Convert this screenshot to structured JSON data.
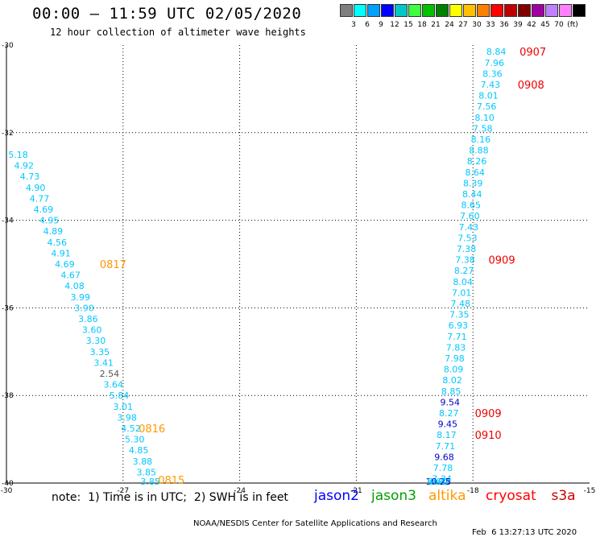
{
  "header": {
    "title": "00:00 – 11:59 UTC 02/05/2020",
    "subtitle": "12 hour collection of altimeter wave heights"
  },
  "colorbar": {
    "colors": [
      "#7f7f7f",
      "#00ffff",
      "#00a0ff",
      "#0000ff",
      "#00c8c8",
      "#40ff40",
      "#00c000",
      "#008000",
      "#ffff00",
      "#ffc000",
      "#ff8000",
      "#ff0000",
      "#c00000",
      "#800000",
      "#a000a0",
      "#c080ff",
      "#ff80ff",
      "#000000"
    ],
    "labels": [
      "3",
      "6",
      "9",
      "12",
      "15",
      "18",
      "21",
      "24",
      "27",
      "30",
      "33",
      "36",
      "39",
      "42",
      "45",
      "70",
      "(ft)"
    ]
  },
  "note": "note:  1) Time is in UTC;  2) SWH is in feet",
  "satellites": [
    {
      "name": "jason2",
      "color": "#0000ff"
    },
    {
      "name": "jason3",
      "color": "#00a000"
    },
    {
      "name": "altika",
      "color": "#ff9900"
    },
    {
      "name": "cryosat",
      "color": "#ff0000"
    },
    {
      "name": "s3a",
      "color": "#cc0000"
    }
  ],
  "footer": {
    "credit": "NOAA/NESDIS Center for Satellite Applications and Research",
    "timestamp": "Feb  6 13:27:13 UTC 2020"
  },
  "chart_data": {
    "type": "scatter",
    "x_ticks": [
      "-30",
      "-27",
      "-24",
      "-21",
      "-18",
      "-15"
    ],
    "y_ticks": [
      "-30",
      "-32",
      "-34",
      "-36",
      "-38",
      "-40"
    ],
    "xlim": [
      -30,
      -15
    ],
    "ylim": [
      -40,
      -30
    ],
    "grid": true,
    "colors": {
      "cyan": "#00c8ff",
      "blue": "#0000cc",
      "gray": "#555555",
      "orange": "#ff9900",
      "red": "#ee0000"
    },
    "left_track": [
      {
        "lon": -29.7,
        "lat": -32.5,
        "value": "5.18",
        "color": "cyan"
      },
      {
        "lon": -29.55,
        "lat": -32.75,
        "value": "4.92",
        "color": "cyan"
      },
      {
        "lon": -29.4,
        "lat": -33.0,
        "value": "4.73",
        "color": "cyan"
      },
      {
        "lon": -29.25,
        "lat": -33.25,
        "value": "4.90",
        "color": "cyan"
      },
      {
        "lon": -29.15,
        "lat": -33.5,
        "value": "4.77",
        "color": "cyan"
      },
      {
        "lon": -29.05,
        "lat": -33.75,
        "value": "4.69",
        "color": "cyan"
      },
      {
        "lon": -28.9,
        "lat": -34.0,
        "value": "4.95",
        "color": "cyan"
      },
      {
        "lon": -28.8,
        "lat": -34.25,
        "value": "4.89",
        "color": "cyan"
      },
      {
        "lon": -28.7,
        "lat": -34.5,
        "value": "4.56",
        "color": "cyan"
      },
      {
        "lon": -28.6,
        "lat": -34.75,
        "value": "4.91",
        "color": "cyan"
      },
      {
        "lon": -28.5,
        "lat": -35.0,
        "value": "4.69",
        "color": "cyan"
      },
      {
        "lon": -28.35,
        "lat": -35.25,
        "value": "4.67",
        "color": "cyan"
      },
      {
        "lon": -28.25,
        "lat": -35.5,
        "value": "4.08",
        "color": "cyan"
      },
      {
        "lon": -28.1,
        "lat": -35.75,
        "value": "3.99",
        "color": "cyan"
      },
      {
        "lon": -28.0,
        "lat": -36.0,
        "value": "3.90",
        "color": "cyan"
      },
      {
        "lon": -27.9,
        "lat": -36.25,
        "value": "3.86",
        "color": "cyan"
      },
      {
        "lon": -27.8,
        "lat": -36.5,
        "value": "3.60",
        "color": "cyan"
      },
      {
        "lon": -27.7,
        "lat": -36.75,
        "value": "3.30",
        "color": "cyan"
      },
      {
        "lon": -27.6,
        "lat": -37.0,
        "value": "3.35",
        "color": "cyan"
      },
      {
        "lon": -27.5,
        "lat": -37.25,
        "value": "3.41",
        "color": "cyan"
      },
      {
        "lon": -27.35,
        "lat": -37.5,
        "value": "2.54",
        "color": "gray"
      },
      {
        "lon": -27.25,
        "lat": -37.75,
        "value": "3.64",
        "color": "cyan"
      },
      {
        "lon": -27.1,
        "lat": -38.0,
        "value": "5.84",
        "color": "cyan"
      },
      {
        "lon": -27.0,
        "lat": -38.25,
        "value": "3.01",
        "color": "cyan"
      },
      {
        "lon": -26.9,
        "lat": -38.5,
        "value": "3.98",
        "color": "cyan"
      },
      {
        "lon": -26.8,
        "lat": -38.75,
        "value": "4.52",
        "color": "cyan"
      },
      {
        "lon": -26.7,
        "lat": -39.0,
        "value": "5.30",
        "color": "cyan"
      },
      {
        "lon": -26.6,
        "lat": -39.25,
        "value": "4.85",
        "color": "cyan"
      },
      {
        "lon": -26.5,
        "lat": -39.5,
        "value": "3.88",
        "color": "cyan"
      },
      {
        "lon": -26.4,
        "lat": -39.75,
        "value": "3.85",
        "color": "cyan"
      },
      {
        "lon": -26.3,
        "lat": -40.0,
        "value": "3.85",
        "color": "cyan"
      }
    ],
    "right_track": [
      {
        "lon": -17.4,
        "lat": -30.15,
        "value": "8.84",
        "color": "cyan"
      },
      {
        "lon": -17.45,
        "lat": -30.4,
        "value": "7.96",
        "color": "cyan"
      },
      {
        "lon": -17.5,
        "lat": -30.65,
        "value": "8.36",
        "color": "cyan"
      },
      {
        "lon": -17.55,
        "lat": -30.9,
        "value": "7.43",
        "color": "cyan"
      },
      {
        "lon": -17.6,
        "lat": -31.15,
        "value": "8.01",
        "color": "cyan"
      },
      {
        "lon": -17.65,
        "lat": -31.4,
        "value": "7.56",
        "color": "cyan"
      },
      {
        "lon": -17.7,
        "lat": -31.65,
        "value": "8.10",
        "color": "cyan"
      },
      {
        "lon": -17.75,
        "lat": -31.9,
        "value": "7.58",
        "color": "cyan"
      },
      {
        "lon": -17.8,
        "lat": -32.15,
        "value": "8.16",
        "color": "cyan"
      },
      {
        "lon": -17.85,
        "lat": -32.4,
        "value": "8.88",
        "color": "cyan"
      },
      {
        "lon": -17.9,
        "lat": -32.65,
        "value": "8.26",
        "color": "cyan"
      },
      {
        "lon": -17.95,
        "lat": -32.9,
        "value": "8.64",
        "color": "cyan"
      },
      {
        "lon": -18.0,
        "lat": -33.15,
        "value": "8.39",
        "color": "cyan"
      },
      {
        "lon": -18.02,
        "lat": -33.4,
        "value": "8.44",
        "color": "cyan"
      },
      {
        "lon": -18.05,
        "lat": -33.65,
        "value": "8.65",
        "color": "cyan"
      },
      {
        "lon": -18.08,
        "lat": -33.9,
        "value": "7.60",
        "color": "cyan"
      },
      {
        "lon": -18.11,
        "lat": -34.15,
        "value": "7.43",
        "color": "cyan"
      },
      {
        "lon": -18.14,
        "lat": -34.4,
        "value": "7.53",
        "color": "cyan"
      },
      {
        "lon": -18.17,
        "lat": -34.65,
        "value": "7.38",
        "color": "cyan"
      },
      {
        "lon": -18.2,
        "lat": -34.9,
        "value": "7.38",
        "color": "cyan"
      },
      {
        "lon": -18.23,
        "lat": -35.15,
        "value": "8.27",
        "color": "cyan"
      },
      {
        "lon": -18.26,
        "lat": -35.4,
        "value": "8.04",
        "color": "cyan"
      },
      {
        "lon": -18.29,
        "lat": -35.65,
        "value": "7.01",
        "color": "cyan"
      },
      {
        "lon": -18.32,
        "lat": -35.9,
        "value": "7.48",
        "color": "cyan"
      },
      {
        "lon": -18.35,
        "lat": -36.15,
        "value": "7.35",
        "color": "cyan"
      },
      {
        "lon": -18.38,
        "lat": -36.4,
        "value": "6.93",
        "color": "cyan"
      },
      {
        "lon": -18.41,
        "lat": -36.65,
        "value": "7.71",
        "color": "cyan"
      },
      {
        "lon": -18.44,
        "lat": -36.9,
        "value": "7.83",
        "color": "cyan"
      },
      {
        "lon": -18.47,
        "lat": -37.15,
        "value": "7.98",
        "color": "cyan"
      },
      {
        "lon": -18.5,
        "lat": -37.4,
        "value": "8.09",
        "color": "cyan"
      },
      {
        "lon": -18.53,
        "lat": -37.65,
        "value": "8.02",
        "color": "cyan"
      },
      {
        "lon": -18.56,
        "lat": -37.9,
        "value": "8.85",
        "color": "cyan"
      },
      {
        "lon": -18.59,
        "lat": -38.15,
        "value": "9.54",
        "color": "blue"
      },
      {
        "lon": -18.62,
        "lat": -38.4,
        "value": "8.27",
        "color": "cyan"
      },
      {
        "lon": -18.65,
        "lat": -38.65,
        "value": "9.45",
        "color": "blue"
      },
      {
        "lon": -18.68,
        "lat": -38.9,
        "value": "8.17",
        "color": "cyan"
      },
      {
        "lon": -18.71,
        "lat": -39.15,
        "value": "7.71",
        "color": "cyan"
      },
      {
        "lon": -18.74,
        "lat": -39.4,
        "value": "9.68",
        "color": "blue"
      },
      {
        "lon": -18.77,
        "lat": -39.65,
        "value": "7.78",
        "color": "cyan"
      },
      {
        "lon": -18.8,
        "lat": -39.9,
        "value": "7.34",
        "color": "cyan"
      },
      {
        "lon": -18.83,
        "lat": -40.15,
        "value": "6.22",
        "color": "cyan"
      },
      {
        "lon": -18.86,
        "lat": -40.4,
        "value": "6.81",
        "color": "cyan"
      },
      {
        "lon": -18.89,
        "lat": -40.65,
        "value": "10.25",
        "color": "blue"
      },
      {
        "lon": -18.92,
        "lat": -40.9,
        "value": "6.61",
        "color": "cyan"
      }
    ],
    "time_labels": [
      {
        "text": "0907",
        "lon": -16.8,
        "lat": -30.15,
        "color": "red"
      },
      {
        "text": "0908",
        "lon": -16.85,
        "lat": -30.9,
        "color": "red"
      },
      {
        "text": "0909",
        "lon": -17.6,
        "lat": -34.9,
        "color": "red"
      },
      {
        "text": "0909",
        "lon": -17.95,
        "lat": -38.4,
        "color": "red"
      },
      {
        "text": "0910",
        "lon": -17.95,
        "lat": -38.9,
        "color": "red"
      },
      {
        "text": "0817",
        "lon": -27.6,
        "lat": -35.0,
        "color": "orange"
      },
      {
        "text": "0816",
        "lon": -26.6,
        "lat": -38.75,
        "color": "orange"
      },
      {
        "text": "0815",
        "lon": -26.1,
        "lat": -40.0,
        "color": "orange"
      }
    ]
  }
}
